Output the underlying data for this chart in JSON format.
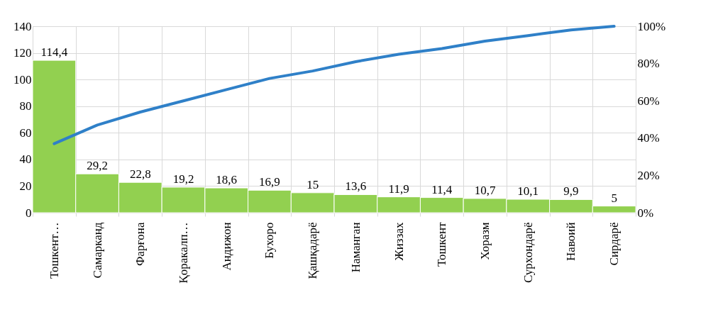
{
  "chart_data": {
    "type": "bar",
    "categories": [
      "Тошкент…",
      "Самарканд",
      "Фарғона",
      "Қоракалп…",
      "Андижон",
      "Бухоро",
      "Қашқадарё",
      "Наманган",
      "Жиззах",
      "Тошкент",
      "Хоразм",
      "Сурхондарё",
      "Навоий",
      "Сирдарё"
    ],
    "series": [
      {
        "type": "bar",
        "color": "#92d050",
        "values": [
          114.4,
          29.2,
          22.8,
          19.2,
          18.6,
          16.9,
          15,
          13.6,
          11.9,
          11.4,
          10.7,
          10.1,
          9.9,
          5
        ],
        "value_labels": [
          "114,4",
          "29,2",
          "22,8",
          "19,2",
          "18,6",
          "16,9",
          "15",
          "13,6",
          "11,9",
          "11,4",
          "10,7",
          "10,1",
          "9,9",
          "5"
        ]
      },
      {
        "type": "line",
        "axis": "y2",
        "color": "#2f80c8",
        "values": [
          37,
          47,
          54,
          60,
          66,
          72,
          76,
          81,
          85,
          88,
          92,
          95,
          98,
          100
        ]
      }
    ],
    "ylim": [
      0,
      140
    ],
    "yticks": [
      0,
      20,
      40,
      60,
      80,
      100,
      120,
      140
    ],
    "y2lim": [
      0,
      100
    ],
    "y2ticks": [
      {
        "value": 0,
        "label": "0%"
      },
      {
        "value": 20,
        "label": "20%"
      },
      {
        "value": 40,
        "label": "40%"
      },
      {
        "value": 60,
        "label": "60%"
      },
      {
        "value": 80,
        "label": "80%"
      },
      {
        "value": 100,
        "label": "100%"
      }
    ],
    "grid": true
  }
}
